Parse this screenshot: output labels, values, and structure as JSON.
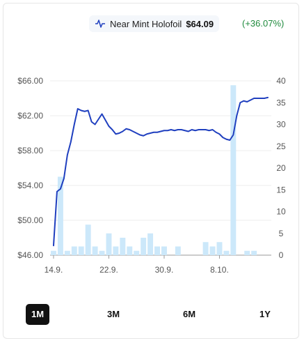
{
  "legend": {
    "icon": "line-chart-icon",
    "name": "Near Mint Holofoil",
    "price": "$64.09",
    "change": "(+36.07%)",
    "change_color": "#1e8a3c"
  },
  "colors": {
    "line": "#1f3fbf",
    "bars": "#cce8fa",
    "active_tab_bg": "#111111"
  },
  "chart_data": {
    "type": "line",
    "x_tick_labels": [
      "14.9.",
      "22.9.",
      "30.9.",
      "8.10."
    ],
    "x_tick_indices": [
      0,
      8,
      16,
      24
    ],
    "y_left_ticks": [
      "$46.00",
      "$50.00",
      "$54.00",
      "$58.00",
      "$62.00",
      "$66.00"
    ],
    "y_left_range": [
      46,
      66
    ],
    "y_right_ticks": [
      "0",
      "5",
      "10",
      "15",
      "20",
      "25",
      "30",
      "35",
      "40"
    ],
    "y_right_range": [
      0,
      40
    ],
    "series": [
      {
        "kind": "line",
        "axis": "left",
        "points": [
          [
            0,
            47.1
          ],
          [
            0.5,
            53.3
          ],
          [
            1,
            53.6
          ],
          [
            1.5,
            54.8
          ],
          [
            2,
            57.5
          ],
          [
            2.5,
            59.0
          ],
          [
            3,
            61.0
          ],
          [
            3.5,
            62.8
          ],
          [
            4,
            62.6
          ],
          [
            4.5,
            62.5
          ],
          [
            5,
            62.6
          ],
          [
            5.5,
            61.3
          ],
          [
            6,
            61.0
          ],
          [
            6.5,
            61.6
          ],
          [
            7,
            62.2
          ],
          [
            7.5,
            61.5
          ],
          [
            8,
            60.8
          ],
          [
            8.5,
            60.4
          ],
          [
            9,
            59.9
          ],
          [
            9.5,
            60.0
          ],
          [
            10,
            60.2
          ],
          [
            10.5,
            60.5
          ],
          [
            11,
            60.4
          ],
          [
            11.5,
            60.2
          ],
          [
            12,
            60.0
          ],
          [
            12.5,
            59.8
          ],
          [
            13,
            59.7
          ],
          [
            13.5,
            59.9
          ],
          [
            14,
            60.0
          ],
          [
            14.5,
            60.1
          ],
          [
            15,
            60.1
          ],
          [
            15.5,
            60.2
          ],
          [
            16,
            60.3
          ],
          [
            16.5,
            60.3
          ],
          [
            17,
            60.4
          ],
          [
            17.5,
            60.3
          ],
          [
            18,
            60.4
          ],
          [
            18.5,
            60.4
          ],
          [
            19,
            60.3
          ],
          [
            19.5,
            60.2
          ],
          [
            20,
            60.4
          ],
          [
            20.5,
            60.3
          ],
          [
            21,
            60.4
          ],
          [
            21.5,
            60.4
          ],
          [
            22,
            60.4
          ],
          [
            22.5,
            60.3
          ],
          [
            23,
            60.4
          ],
          [
            23.5,
            60.1
          ],
          [
            24,
            59.9
          ],
          [
            24.5,
            59.5
          ],
          [
            25,
            59.3
          ],
          [
            25.5,
            59.2
          ],
          [
            26,
            59.8
          ],
          [
            26.5,
            62.0
          ],
          [
            27,
            63.5
          ],
          [
            27.5,
            63.7
          ],
          [
            28,
            63.6
          ],
          [
            28.5,
            63.8
          ],
          [
            29,
            64.0
          ],
          [
            29.5,
            64.0
          ],
          [
            30,
            64.0
          ],
          [
            30.5,
            64.0
          ],
          [
            31,
            64.09
          ]
        ]
      },
      {
        "kind": "bar",
        "axis": "right",
        "values": [
          1,
          18,
          1,
          2,
          2,
          7,
          2,
          1,
          5,
          2,
          4,
          2,
          1,
          4,
          5,
          2,
          2,
          0,
          2,
          0,
          0,
          0,
          3,
          2,
          3,
          1,
          39,
          0,
          1,
          1,
          0,
          0
        ]
      }
    ]
  },
  "tabs": [
    {
      "label": "1M",
      "active": true
    },
    {
      "label": "3M",
      "active": false
    },
    {
      "label": "6M",
      "active": false
    },
    {
      "label": "1Y",
      "active": false
    }
  ]
}
